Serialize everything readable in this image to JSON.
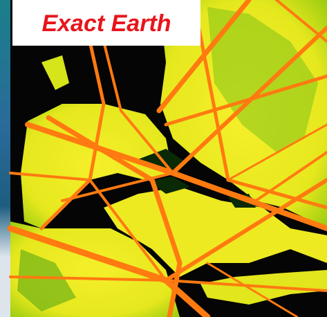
{
  "title": "Exact Earth"
}
